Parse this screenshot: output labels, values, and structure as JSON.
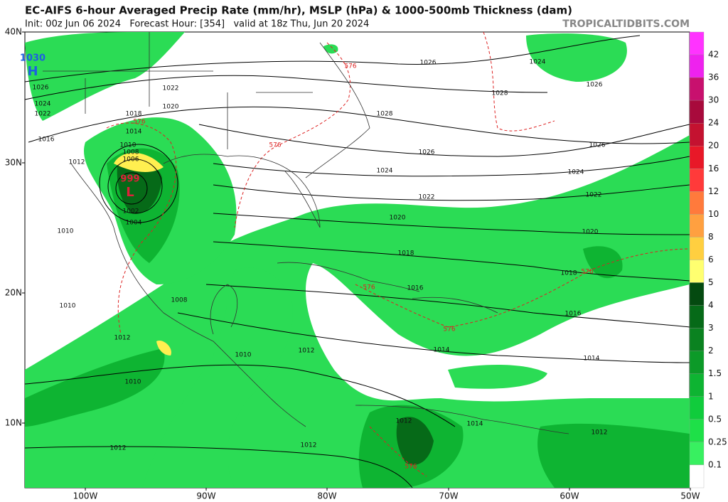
{
  "header": {
    "title": "EC-AIFS 6-hour Averaged Precip Rate (mm/hr), MSLP (hPa) & 1000-500mb Thickness (dam)",
    "subtitle": "Init: 00z Jun 06 2024   Forecast Hour: [354]   valid at 18z Thu, Jun 20 2024",
    "credit": "TROPICALTIDBITS.COM"
  },
  "axes": {
    "lat_labels": [
      "40N",
      "30N",
      "20N",
      "10N"
    ],
    "lon_labels": [
      "100W",
      "90W",
      "80W",
      "70W",
      "60W",
      "50W"
    ]
  },
  "colorbar": {
    "labels": [
      "42",
      "36",
      "30",
      "24",
      "20",
      "16",
      "12",
      "10",
      "8",
      "6",
      "5",
      "4",
      "3",
      "2",
      "1.5",
      "1",
      "0.5",
      "0.25",
      "0.1"
    ],
    "colors": [
      "#ff33ff",
      "#ee22ee",
      "#c8106e",
      "#a80a3c",
      "#c41230",
      "#e81828",
      "#ff3a3a",
      "#ff7a3c",
      "#ffa040",
      "#ffcf40",
      "#ffff70",
      "#044a10",
      "#066a18",
      "#0a8220",
      "#0c9a28",
      "#0eb432",
      "#10cc3c",
      "#1ee048",
      "#38f060",
      "#ffffff"
    ]
  },
  "pressure_centers": [
    {
      "value": "1030",
      "letter": "H"
    },
    {
      "value": "999",
      "letter": "L"
    }
  ],
  "isobar_labels": [
    "1026",
    "1024",
    "1022",
    "1016",
    "1012",
    "1010",
    "1010",
    "1012",
    "1010",
    "1012",
    "1022",
    "1020",
    "1018",
    "1014",
    "1010",
    "1008",
    "1006",
    "1002",
    "1004",
    "1008",
    "1010",
    "1012",
    "1014",
    "1014",
    "1016",
    "1016",
    "1018",
    "1018",
    "1020",
    "1020",
    "1022",
    "1022",
    "1024",
    "1024",
    "1026",
    "1026",
    "1026",
    "1024",
    "1026",
    "1028",
    "1028",
    "1012",
    "1012",
    "1014",
    "1012"
  ],
  "thickness_labels": [
    "576",
    "576",
    "576",
    "576",
    "576",
    "576",
    "576"
  ]
}
